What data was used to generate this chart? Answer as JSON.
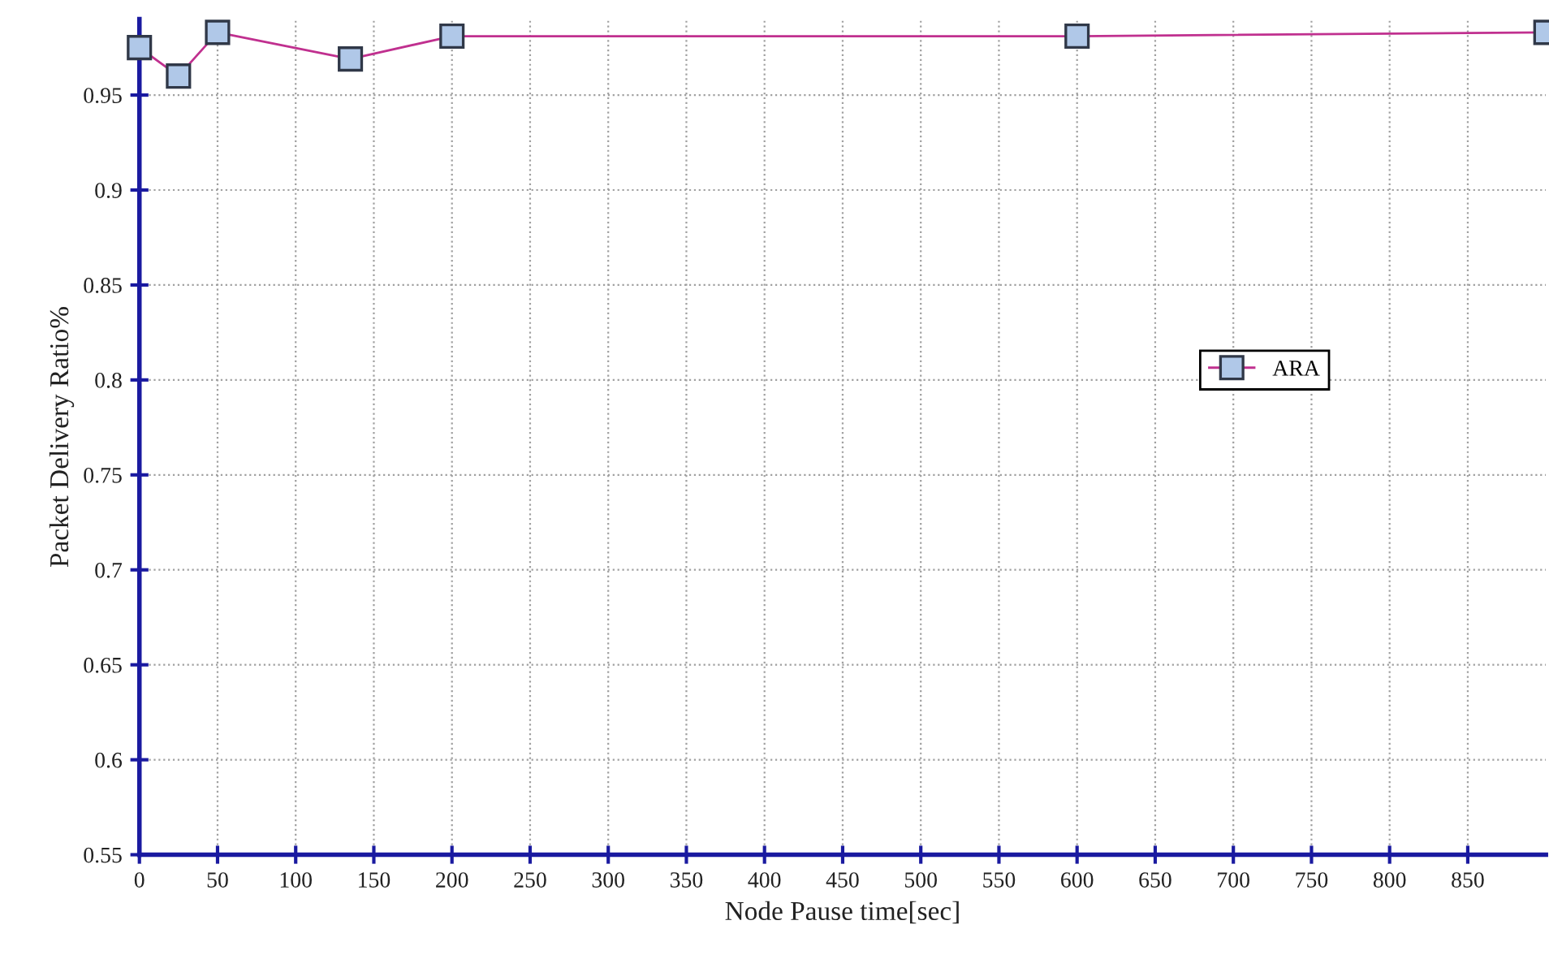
{
  "chart_data": {
    "type": "line",
    "xlabel": "Node Pause time[sec]",
    "ylabel": "Packet Delivery Ratio%",
    "x": [
      0,
      25,
      50,
      135,
      200,
      600,
      900
    ],
    "series": [
      {
        "name": "ARA",
        "color": "#c0308f",
        "values": [
          0.975,
          0.96,
          0.983,
          0.969,
          0.981,
          0.981,
          0.983
        ]
      }
    ],
    "xlim": [
      0,
      900
    ],
    "xticks": [
      0,
      50,
      100,
      150,
      200,
      250,
      300,
      350,
      400,
      450,
      500,
      550,
      600,
      650,
      700,
      750,
      800,
      850
    ],
    "ylim": [
      0.55,
      0.99
    ],
    "yticks": [
      0.55,
      0.6,
      0.65,
      0.7,
      0.75,
      0.8,
      0.85,
      0.9,
      0.95
    ],
    "grid": true,
    "legend": "right",
    "marker": "square",
    "line_style": "solid"
  }
}
